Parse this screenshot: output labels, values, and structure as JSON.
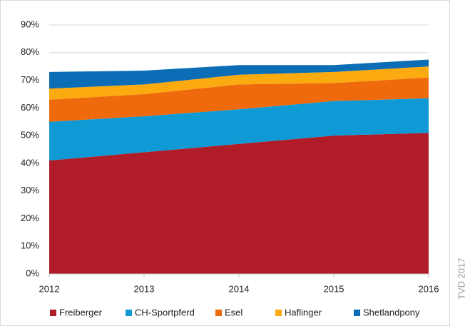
{
  "chart_data": {
    "type": "stacked_area",
    "categories": [
      "2012",
      "2013",
      "2014",
      "2015",
      "2016"
    ],
    "series": [
      {
        "name": "Freiberger",
        "color": "#b01c27",
        "values": [
          41,
          44,
          47,
          50,
          51
        ]
      },
      {
        "name": "CH-Sportpferd",
        "color": "#0f9ad6",
        "values": [
          14,
          13,
          12.5,
          12.5,
          12.5
        ]
      },
      {
        "name": "Esel",
        "color": "#ee6a0c",
        "values": [
          8,
          8,
          9,
          6.5,
          7.5
        ]
      },
      {
        "name": "Haflinger",
        "color": "#fbaa0f",
        "values": [
          4,
          3.5,
          3.5,
          4,
          4
        ]
      },
      {
        "name": "Shetlandpony",
        "color": "#0c6db7",
        "values": [
          6,
          5,
          3.5,
          2.5,
          2.5
        ]
      }
    ],
    "ylim": [
      0,
      90
    ],
    "yticks": [
      {
        "value": 0,
        "label": "0%"
      },
      {
        "value": 10,
        "label": "10%"
      },
      {
        "value": 20,
        "label": "20%"
      },
      {
        "value": 30,
        "label": "30%"
      },
      {
        "value": 40,
        "label": "40%"
      },
      {
        "value": 50,
        "label": "50%"
      },
      {
        "value": 60,
        "label": "60%"
      },
      {
        "value": 70,
        "label": "70%"
      },
      {
        "value": 80,
        "label": "80%"
      },
      {
        "value": 90,
        "label": "90%"
      }
    ],
    "grid": true,
    "legend": "bottom",
    "annotation": "TVD 2017"
  }
}
